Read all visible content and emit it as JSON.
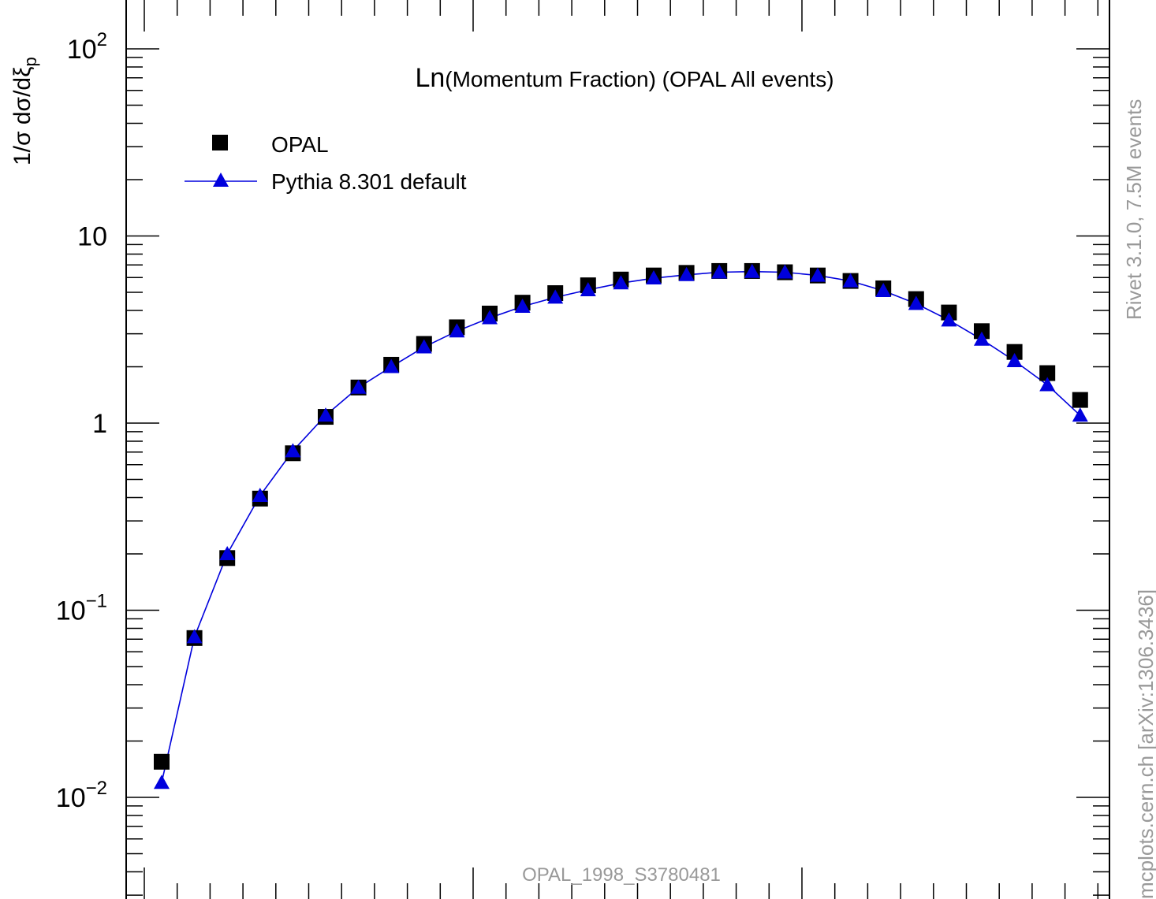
{
  "chart_data": {
    "type": "scatter",
    "title": "Ln(Momentum Fraction) (OPAL All events)",
    "title_prefix": "Ln",
    "title_rest": "(Momentum Fraction) (OPAL All events)",
    "ylabel": "1/σ dσ/dξ",
    "ylabel_sub": "p",
    "yscale": "log",
    "ylim": [
      0.0028,
      150
    ],
    "y_ticks": [
      {
        "base": "10",
        "exp": "2",
        "value": 100
      },
      {
        "base": "10",
        "exp": "",
        "value": 10
      },
      {
        "base": "1",
        "exp": "",
        "value": 1
      },
      {
        "base": "10",
        "exp": "−1",
        "value": 0.1
      },
      {
        "base": "10",
        "exp": "−2",
        "value": 0.01
      }
    ],
    "x_tick_count": 30,
    "series": [
      {
        "name": "OPAL",
        "marker": "square",
        "color": "#000000",
        "values": [
          0.0155,
          0.071,
          0.19,
          0.395,
          0.69,
          1.08,
          1.55,
          2.05,
          2.65,
          3.25,
          3.85,
          4.4,
          4.95,
          5.45,
          5.85,
          6.15,
          6.35,
          6.5,
          6.5,
          6.4,
          6.15,
          5.75,
          5.25,
          4.6,
          3.9,
          3.1,
          2.4,
          1.85,
          1.33
        ]
      },
      {
        "name": "Pythia 8.301 default",
        "marker": "triangle",
        "line": true,
        "color": "#0000dd",
        "values": [
          0.012,
          0.072,
          0.2,
          0.41,
          0.71,
          1.1,
          1.55,
          2.0,
          2.55,
          3.1,
          3.65,
          4.2,
          4.7,
          5.15,
          5.6,
          5.95,
          6.2,
          6.4,
          6.45,
          6.4,
          6.15,
          5.75,
          5.1,
          4.35,
          3.55,
          2.8,
          2.15,
          1.6,
          1.1
        ]
      }
    ],
    "reference_label": "OPAL_1998_S3780481",
    "side_label_top": "Rivet 3.1.0,  7.5M events",
    "side_label_bottom": "mcplots.cern.ch [arXiv:1306.3436]",
    "colors": {
      "axis": "#000000",
      "data": "#000000",
      "mc": "#0000dd",
      "gray_text": "#999999"
    }
  }
}
